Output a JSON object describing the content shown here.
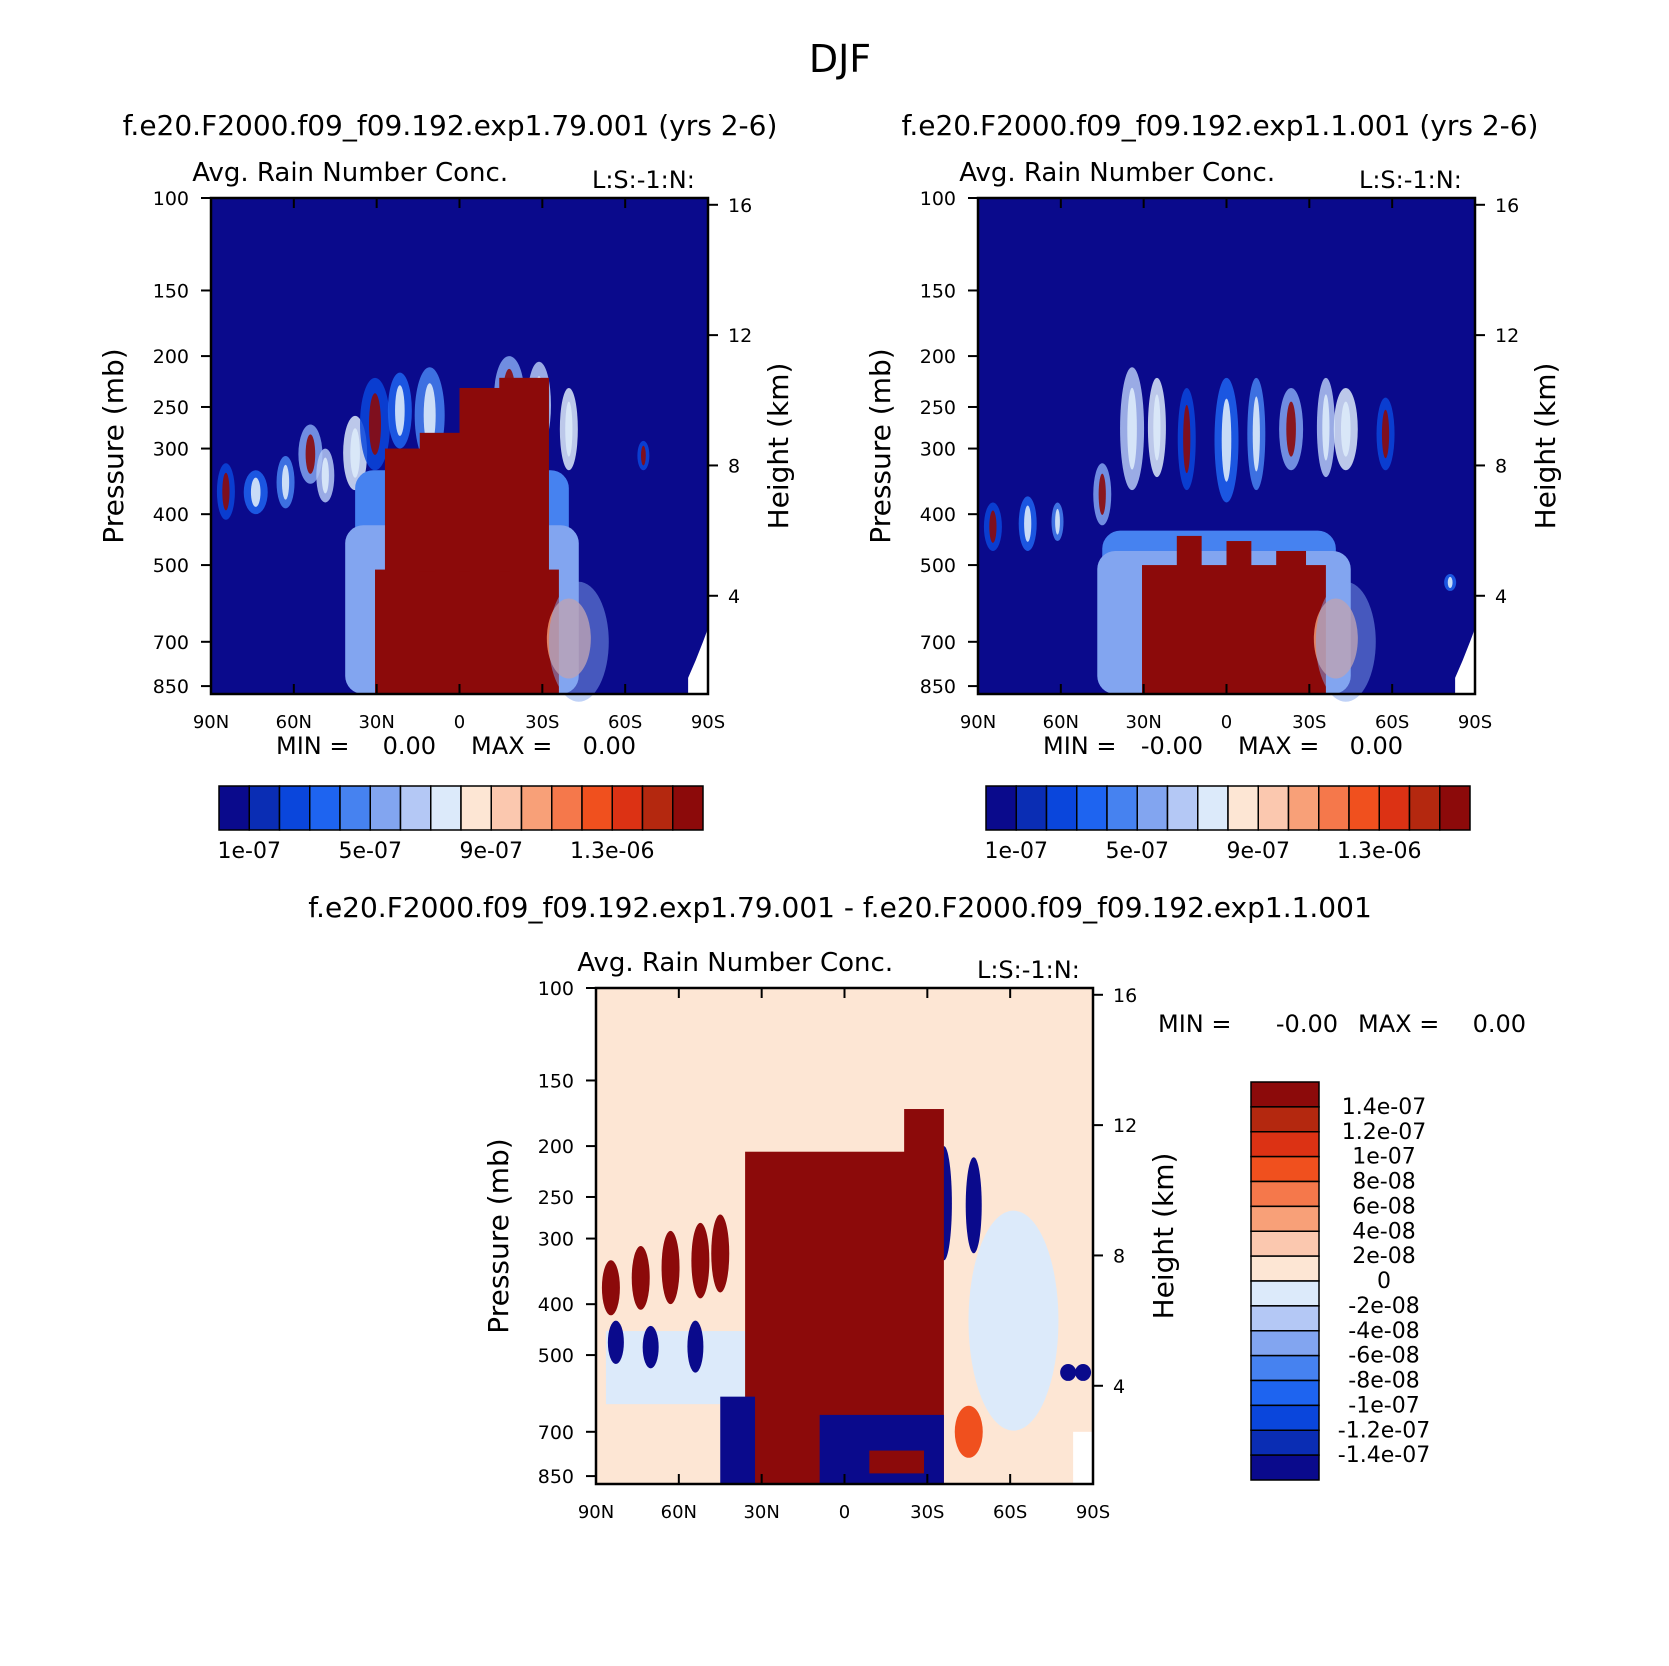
{
  "figure_title": "DJF",
  "panel_top_left_header": "f.e20.F2000.f09_f09.192.exp1.79.001 (yrs 2-6)",
  "panel_top_right_header": "f.e20.F2000.f09_f09.192.exp1.1.001 (yrs 2-6)",
  "panel_bottom_header": "f.e20.F2000.f09_f09.192.exp1.79.001 - f.e20.F2000.f09_f09.192.exp1.1.001",
  "chart_data": [
    {
      "type": "heatmap",
      "title": "Avg. Rain Number Conc.",
      "corner_label": "L:S:-1:N:",
      "ylabel": "Pressure (mb)",
      "y2label": "Height (km)",
      "x_ticks": [
        "90N",
        "60N",
        "30N",
        "0",
        "30S",
        "60S",
        "90S"
      ],
      "y_ticks": [
        100,
        150,
        200,
        250,
        300,
        400,
        500,
        700,
        850
      ],
      "y2_ticks": [
        16,
        12,
        8,
        4
      ],
      "min_label": "MIN =",
      "min_value": "0.00",
      "max_label": "MAX =",
      "max_value": "0.00",
      "colorbar_colors": [
        "#0a0a8c",
        "#0a2db4",
        "#0a46dc",
        "#1e64f0",
        "#4682f0",
        "#82a5f0",
        "#b4c8f5",
        "#dceafa",
        "#fde6d4",
        "#fbc8af",
        "#f8a078",
        "#f5784b",
        "#f0501e",
        "#dc3214",
        "#b4280f",
        "#8c0a0a"
      ],
      "colorbar_labels": [
        "1e-07",
        "5e-07",
        "9e-07",
        "1.3e-06"
      ]
    },
    {
      "type": "heatmap",
      "title": "Avg. Rain Number Conc.",
      "corner_label": "L:S:-1:N:",
      "ylabel": "Pressure (mb)",
      "y2label": "Height (km)",
      "x_ticks": [
        "90N",
        "60N",
        "30N",
        "0",
        "30S",
        "60S",
        "90S"
      ],
      "y_ticks": [
        100,
        150,
        200,
        250,
        300,
        400,
        500,
        700,
        850
      ],
      "y2_ticks": [
        16,
        12,
        8,
        4
      ],
      "min_label": "MIN =",
      "min_value": "-0.00",
      "max_label": "MAX =",
      "max_value": "0.00",
      "colorbar_colors": [
        "#0a0a8c",
        "#0a2db4",
        "#0a46dc",
        "#1e64f0",
        "#4682f0",
        "#82a5f0",
        "#b4c8f5",
        "#dceafa",
        "#fde6d4",
        "#fbc8af",
        "#f8a078",
        "#f5784b",
        "#f0501e",
        "#dc3214",
        "#b4280f",
        "#8c0a0a"
      ],
      "colorbar_labels": [
        "1e-07",
        "5e-07",
        "9e-07",
        "1.3e-06"
      ]
    },
    {
      "type": "heatmap",
      "title": "Avg. Rain Number Conc.",
      "corner_label": "L:S:-1:N:",
      "ylabel": "Pressure (mb)",
      "y2label": "Height (km)",
      "x_ticks": [
        "90N",
        "60N",
        "30N",
        "0",
        "30S",
        "60S",
        "90S"
      ],
      "y_ticks": [
        100,
        150,
        200,
        250,
        300,
        400,
        500,
        700,
        850
      ],
      "y2_ticks": [
        16,
        12,
        8,
        4
      ],
      "min_label": "MIN =",
      "min_value": "-0.00",
      "max_label": "MAX =",
      "max_value": "0.00",
      "colorbar_colors": [
        "#8c0a0a",
        "#b4280f",
        "#dc3214",
        "#f0501e",
        "#f5784b",
        "#f8a078",
        "#fbc8af",
        "#fde6d4",
        "#dceafa",
        "#b4c8f5",
        "#82a5f0",
        "#4682f0",
        "#1e64f0",
        "#0a46dc",
        "#0a2db4",
        "#0a0a8c"
      ],
      "colorbar_labels": [
        "1.4e-07",
        "1.2e-07",
        "1e-07",
        "8e-08",
        "6e-08",
        "4e-08",
        "2e-08",
        "0",
        "-2e-08",
        "-4e-08",
        "-6e-08",
        "-8e-08",
        "-1e-07",
        "-1.2e-07",
        "-1.4e-07"
      ]
    }
  ]
}
